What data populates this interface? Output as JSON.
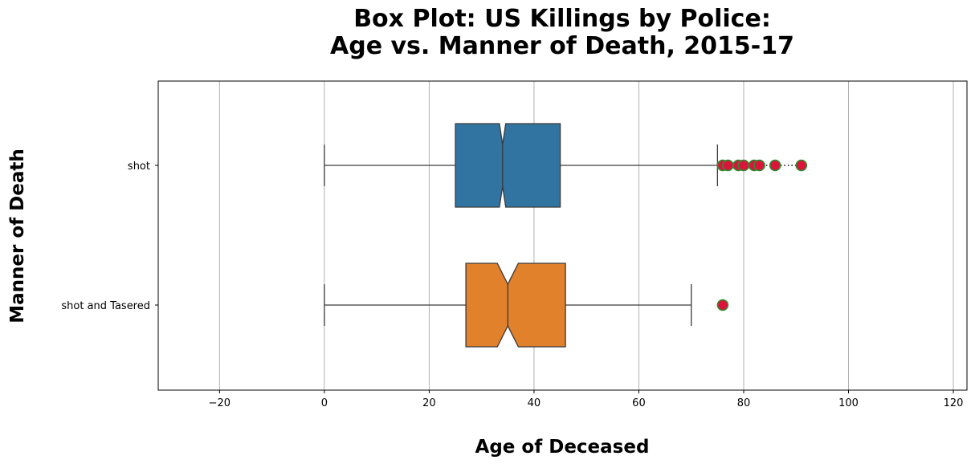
{
  "chart_data": {
    "type": "box",
    "title_line1": "Box Plot: US Killings by Police:",
    "title_line2": "Age vs. Manner of Death, 2015-17",
    "xlabel": "Age of Deceased",
    "ylabel": "Manner of Death",
    "xlim": [
      -31.7,
      122.6
    ],
    "xticks": [
      -20,
      0,
      20,
      40,
      60,
      80,
      100,
      120
    ],
    "xtick_labels": [
      "−20",
      "0",
      "20",
      "40",
      "60",
      "80",
      "100",
      "120"
    ],
    "grid": "vertical",
    "orientation": "horizontal",
    "notched": true,
    "categories": [
      "shot",
      "shot and Tasered"
    ],
    "boxes": [
      {
        "label": "shot",
        "color": "#3274a1",
        "whisker_low": 0,
        "q1": 25,
        "median": 34,
        "notch_low": 33.4,
        "notch_high": 34.6,
        "q3": 45,
        "whisker_high": 75,
        "outliers": [
          76,
          77,
          79,
          80,
          82,
          83,
          86,
          91
        ]
      },
      {
        "label": "shot and Tasered",
        "color": "#e1812c",
        "whisker_low": 0,
        "q1": 27,
        "median": 35,
        "notch_low": 33,
        "notch_high": 37,
        "q3": 46,
        "whisker_high": 70,
        "outliers": [
          76
        ]
      }
    ],
    "flier_style": {
      "fill": "#dc143c",
      "edge": "#2e8b2e",
      "connector": "dotted"
    }
  }
}
